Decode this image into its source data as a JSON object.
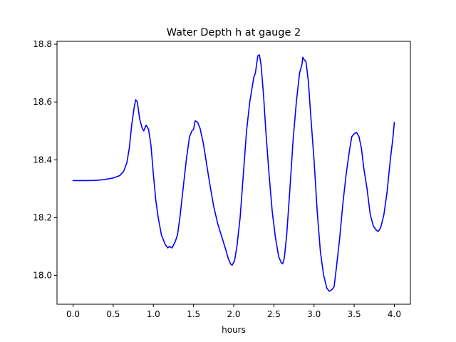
{
  "chart_data": {
    "type": "line",
    "title": "Water Depth h at gauge 2",
    "xlabel": "hours",
    "ylabel": "",
    "xlim": [
      -0.2,
      4.2
    ],
    "ylim": [
      17.9,
      18.81
    ],
    "grid": false,
    "x_ticks": [
      0.0,
      0.5,
      1.0,
      1.5,
      2.0,
      2.5,
      3.0,
      3.5,
      4.0
    ],
    "x_tick_labels": [
      "0.0",
      "0.5",
      "1.0",
      "1.5",
      "2.0",
      "2.5",
      "3.0",
      "3.5",
      "4.0"
    ],
    "y_ticks": [
      18.0,
      18.2,
      18.4,
      18.6,
      18.8
    ],
    "y_tick_labels": [
      "18.0",
      "18.2",
      "18.4",
      "18.6",
      "18.8"
    ],
    "series": [
      {
        "color": "#0000ff",
        "points": [
          [
            0.0,
            18.328
          ],
          [
            0.2,
            18.328
          ],
          [
            0.3,
            18.329
          ],
          [
            0.4,
            18.332
          ],
          [
            0.5,
            18.337
          ],
          [
            0.58,
            18.345
          ],
          [
            0.63,
            18.36
          ],
          [
            0.67,
            18.39
          ],
          [
            0.7,
            18.44
          ],
          [
            0.73,
            18.52
          ],
          [
            0.76,
            18.58
          ],
          [
            0.78,
            18.608
          ],
          [
            0.8,
            18.6
          ],
          [
            0.83,
            18.54
          ],
          [
            0.86,
            18.51
          ],
          [
            0.88,
            18.5
          ],
          [
            0.91,
            18.52
          ],
          [
            0.94,
            18.505
          ],
          [
            0.97,
            18.45
          ],
          [
            1.0,
            18.35
          ],
          [
            1.03,
            18.26
          ],
          [
            1.06,
            18.2
          ],
          [
            1.1,
            18.14
          ],
          [
            1.15,
            18.105
          ],
          [
            1.18,
            18.095
          ],
          [
            1.2,
            18.1
          ],
          [
            1.23,
            18.095
          ],
          [
            1.27,
            18.115
          ],
          [
            1.3,
            18.14
          ],
          [
            1.33,
            18.2
          ],
          [
            1.37,
            18.3
          ],
          [
            1.41,
            18.4
          ],
          [
            1.45,
            18.48
          ],
          [
            1.48,
            18.5
          ],
          [
            1.5,
            18.505
          ],
          [
            1.52,
            18.535
          ],
          [
            1.55,
            18.53
          ],
          [
            1.58,
            18.51
          ],
          [
            1.62,
            18.46
          ],
          [
            1.66,
            18.39
          ],
          [
            1.7,
            18.32
          ],
          [
            1.75,
            18.24
          ],
          [
            1.8,
            18.18
          ],
          [
            1.85,
            18.135
          ],
          [
            1.9,
            18.09
          ],
          [
            1.93,
            18.06
          ],
          [
            1.96,
            18.04
          ],
          [
            1.98,
            18.035
          ],
          [
            2.01,
            18.05
          ],
          [
            2.04,
            18.1
          ],
          [
            2.08,
            18.2
          ],
          [
            2.12,
            18.35
          ],
          [
            2.16,
            18.5
          ],
          [
            2.2,
            18.6
          ],
          [
            2.25,
            18.685
          ],
          [
            2.27,
            18.7
          ],
          [
            2.3,
            18.76
          ],
          [
            2.32,
            18.763
          ],
          [
            2.34,
            18.73
          ],
          [
            2.37,
            18.63
          ],
          [
            2.4,
            18.5
          ],
          [
            2.44,
            18.35
          ],
          [
            2.48,
            18.22
          ],
          [
            2.52,
            18.13
          ],
          [
            2.56,
            18.065
          ],
          [
            2.59,
            18.045
          ],
          [
            2.61,
            18.04
          ],
          [
            2.63,
            18.06
          ],
          [
            2.66,
            18.14
          ],
          [
            2.7,
            18.3
          ],
          [
            2.74,
            18.47
          ],
          [
            2.78,
            18.6
          ],
          [
            2.82,
            18.7
          ],
          [
            2.85,
            18.73
          ],
          [
            2.86,
            18.755
          ],
          [
            2.88,
            18.745
          ],
          [
            2.9,
            18.74
          ],
          [
            2.93,
            18.67
          ],
          [
            2.96,
            18.55
          ],
          [
            3.0,
            18.4
          ],
          [
            3.04,
            18.22
          ],
          [
            3.08,
            18.08
          ],
          [
            3.12,
            18.0
          ],
          [
            3.16,
            17.955
          ],
          [
            3.19,
            17.945
          ],
          [
            3.22,
            17.95
          ],
          [
            3.25,
            17.96
          ],
          [
            3.28,
            18.03
          ],
          [
            3.32,
            18.13
          ],
          [
            3.36,
            18.25
          ],
          [
            3.4,
            18.35
          ],
          [
            3.44,
            18.43
          ],
          [
            3.47,
            18.48
          ],
          [
            3.5,
            18.49
          ],
          [
            3.53,
            18.495
          ],
          [
            3.56,
            18.48
          ],
          [
            3.59,
            18.44
          ],
          [
            3.62,
            18.37
          ],
          [
            3.66,
            18.3
          ],
          [
            3.7,
            18.21
          ],
          [
            3.74,
            18.17
          ],
          [
            3.78,
            18.155
          ],
          [
            3.8,
            18.152
          ],
          [
            3.83,
            18.165
          ],
          [
            3.87,
            18.21
          ],
          [
            3.91,
            18.29
          ],
          [
            3.95,
            18.4
          ],
          [
            3.98,
            18.47
          ],
          [
            4.0,
            18.53
          ]
        ]
      }
    ]
  }
}
